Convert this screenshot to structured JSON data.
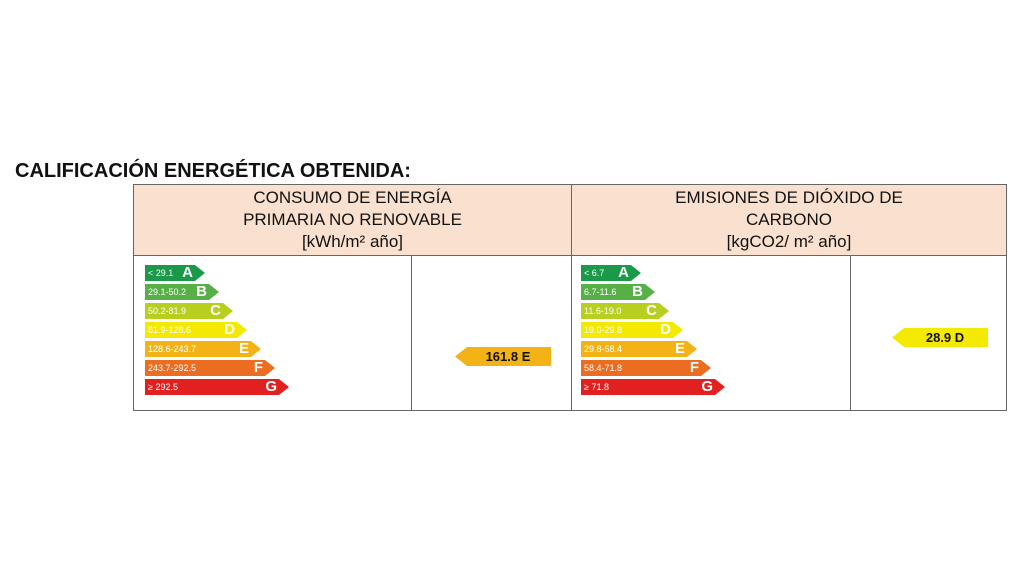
{
  "title": "CALIFICACIÓN ENERGÉTICA OBTENIDA:",
  "colors": {
    "A": "#1a9a48",
    "B": "#56b046",
    "C": "#b9cf1f",
    "D": "#f4e900",
    "E": "#f3b317",
    "F": "#ea6d22",
    "G": "#e1201f"
  },
  "energy": {
    "header": [
      "CONSUMO DE ENERGÍA",
      "PRIMARIA NO RENOVABLE",
      "[kWh/m² año]"
    ],
    "scale": [
      {
        "range": "< 29.1",
        "letter": "A"
      },
      {
        "range": "29.1-50.2",
        "letter": "B"
      },
      {
        "range": "50.2-81.9",
        "letter": "C"
      },
      {
        "range": "81.9-128.6",
        "letter": "D"
      },
      {
        "range": "128.6-243.7",
        "letter": "E"
      },
      {
        "range": "243.7-292.5",
        "letter": "F"
      },
      {
        "range": "≥ 292.5",
        "letter": "G"
      }
    ],
    "result": "161.8 E"
  },
  "co2": {
    "header": [
      "EMISIONES DE DIÓXIDO DE",
      "CARBONO",
      "[kgCO2/ m² año]"
    ],
    "scale": [
      {
        "range": "< 6.7",
        "letter": "A"
      },
      {
        "range": "6.7-11.6",
        "letter": "B"
      },
      {
        "range": "11.6-19.0",
        "letter": "C"
      },
      {
        "range": "19.0-29.8",
        "letter": "D"
      },
      {
        "range": "29.8-58.4",
        "letter": "E"
      },
      {
        "range": "58.4-71.8",
        "letter": "F"
      },
      {
        "range": "≥ 71.8",
        "letter": "G"
      }
    ],
    "result": "28.9 D"
  }
}
